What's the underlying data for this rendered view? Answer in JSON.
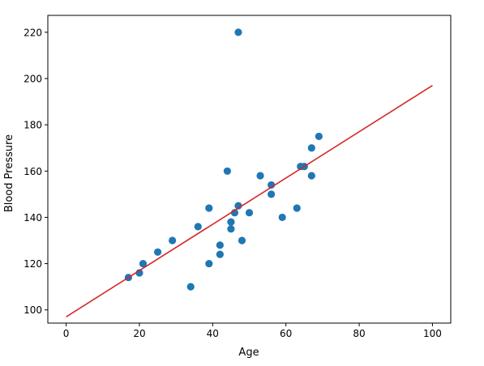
{
  "chart_data": {
    "type": "scatter",
    "title": "",
    "xlabel": "Age",
    "ylabel": "Blood Pressure",
    "xlim": [
      -5,
      105
    ],
    "ylim": [
      94.3,
      227.3
    ],
    "x_ticks": [
      0,
      20,
      40,
      60,
      80,
      100
    ],
    "y_ticks": [
      100,
      120,
      140,
      160,
      180,
      200,
      220
    ],
    "grid": false,
    "legend": "none",
    "series": [
      {
        "type": "scatter",
        "color": "#1f77b4",
        "points": [
          {
            "x": 17,
            "y": 114
          },
          {
            "x": 20,
            "y": 116
          },
          {
            "x": 21,
            "y": 120
          },
          {
            "x": 25,
            "y": 125
          },
          {
            "x": 29,
            "y": 130
          },
          {
            "x": 34,
            "y": 110
          },
          {
            "x": 36,
            "y": 136
          },
          {
            "x": 39,
            "y": 120
          },
          {
            "x": 39,
            "y": 144
          },
          {
            "x": 42,
            "y": 124
          },
          {
            "x": 42,
            "y": 128
          },
          {
            "x": 44,
            "y": 160
          },
          {
            "x": 45,
            "y": 135
          },
          {
            "x": 45,
            "y": 138
          },
          {
            "x": 46,
            "y": 142
          },
          {
            "x": 47,
            "y": 145
          },
          {
            "x": 47,
            "y": 220
          },
          {
            "x": 48,
            "y": 130
          },
          {
            "x": 50,
            "y": 142
          },
          {
            "x": 53,
            "y": 158
          },
          {
            "x": 56,
            "y": 150
          },
          {
            "x": 56,
            "y": 154
          },
          {
            "x": 59,
            "y": 140
          },
          {
            "x": 63,
            "y": 144
          },
          {
            "x": 64,
            "y": 162
          },
          {
            "x": 65,
            "y": 162
          },
          {
            "x": 67,
            "y": 158
          },
          {
            "x": 67,
            "y": 170
          },
          {
            "x": 69,
            "y": 175
          }
        ]
      },
      {
        "type": "line",
        "color": "#d62728",
        "points": [
          {
            "x": 0,
            "y": 97
          },
          {
            "x": 100,
            "y": 197
          }
        ]
      }
    ]
  }
}
